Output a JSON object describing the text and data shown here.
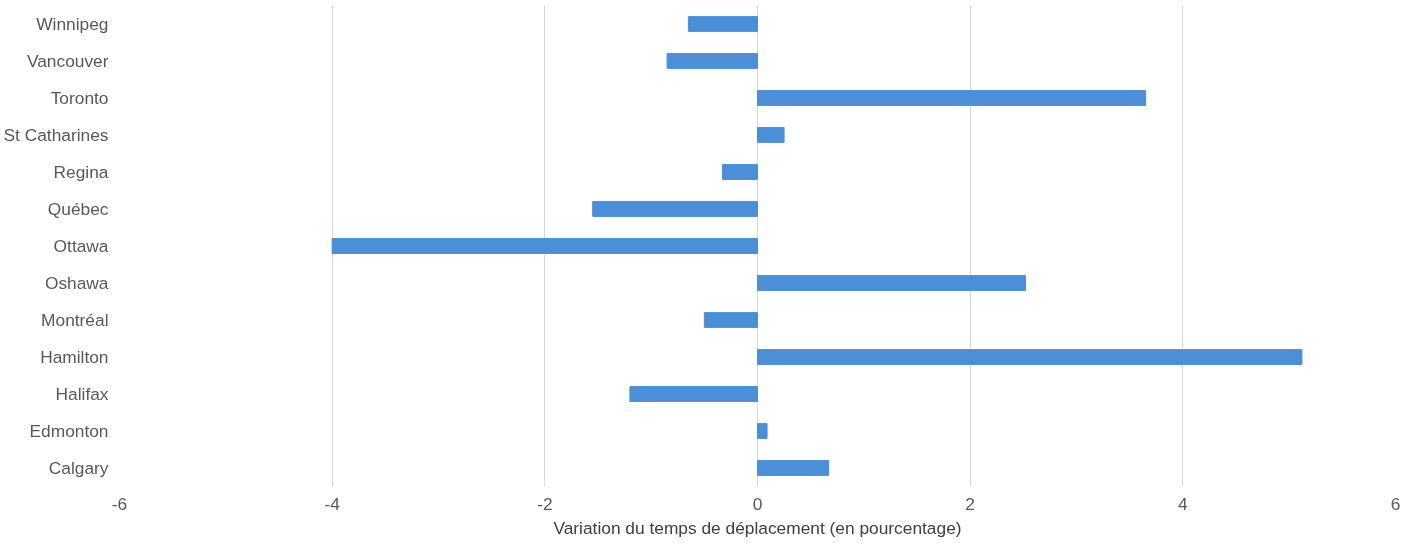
{
  "chart_data": {
    "type": "bar",
    "orientation": "horizontal",
    "xlabel": "Variation du temps de déplacement (en pourcentage)",
    "categories": [
      "Winnipeg",
      "Vancouver",
      "Toronto",
      "St Catharines",
      "Regina",
      "Québec",
      "Ottawa",
      "Oshawa",
      "Montréal",
      "Hamilton",
      "Halifax",
      "Edmonton",
      "Calgary"
    ],
    "values": [
      -0.65,
      -0.85,
      3.65,
      0.25,
      -0.33,
      -1.55,
      -4.0,
      2.52,
      -0.5,
      5.12,
      -1.2,
      0.09,
      0.67
    ],
    "color": "#4a8fd8",
    "xlim": [
      -6,
      6
    ],
    "xticks": [
      -6,
      -4,
      -2,
      0,
      2,
      4,
      6
    ],
    "grid": "x"
  }
}
